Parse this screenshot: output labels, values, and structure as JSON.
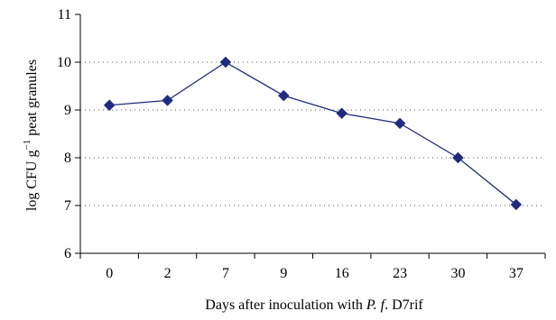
{
  "chart_data": {
    "type": "line",
    "title": "",
    "xlabel_prefix": "Days after inoculation with ",
    "xlabel_italic": "P. f",
    "xlabel_suffix": ". D7rif",
    "ylabel_main": "log CFU g",
    "ylabel_sup": "−1",
    "ylabel_rest": " peat granules",
    "categories": [
      "0",
      "2",
      "7",
      "9",
      "16",
      "23",
      "30",
      "37"
    ],
    "series": [
      {
        "values": [
          9.1,
          9.2,
          10.0,
          9.3,
          8.93,
          8.72,
          8.0,
          7.02
        ]
      }
    ],
    "ylim": [
      6,
      11
    ],
    "yticks": [
      "6",
      "7",
      "8",
      "9",
      "10",
      "11"
    ],
    "grid": "horizontal-dotted",
    "colors": {
      "line": "#1f2a80",
      "marker": "#1f2a80"
    }
  }
}
